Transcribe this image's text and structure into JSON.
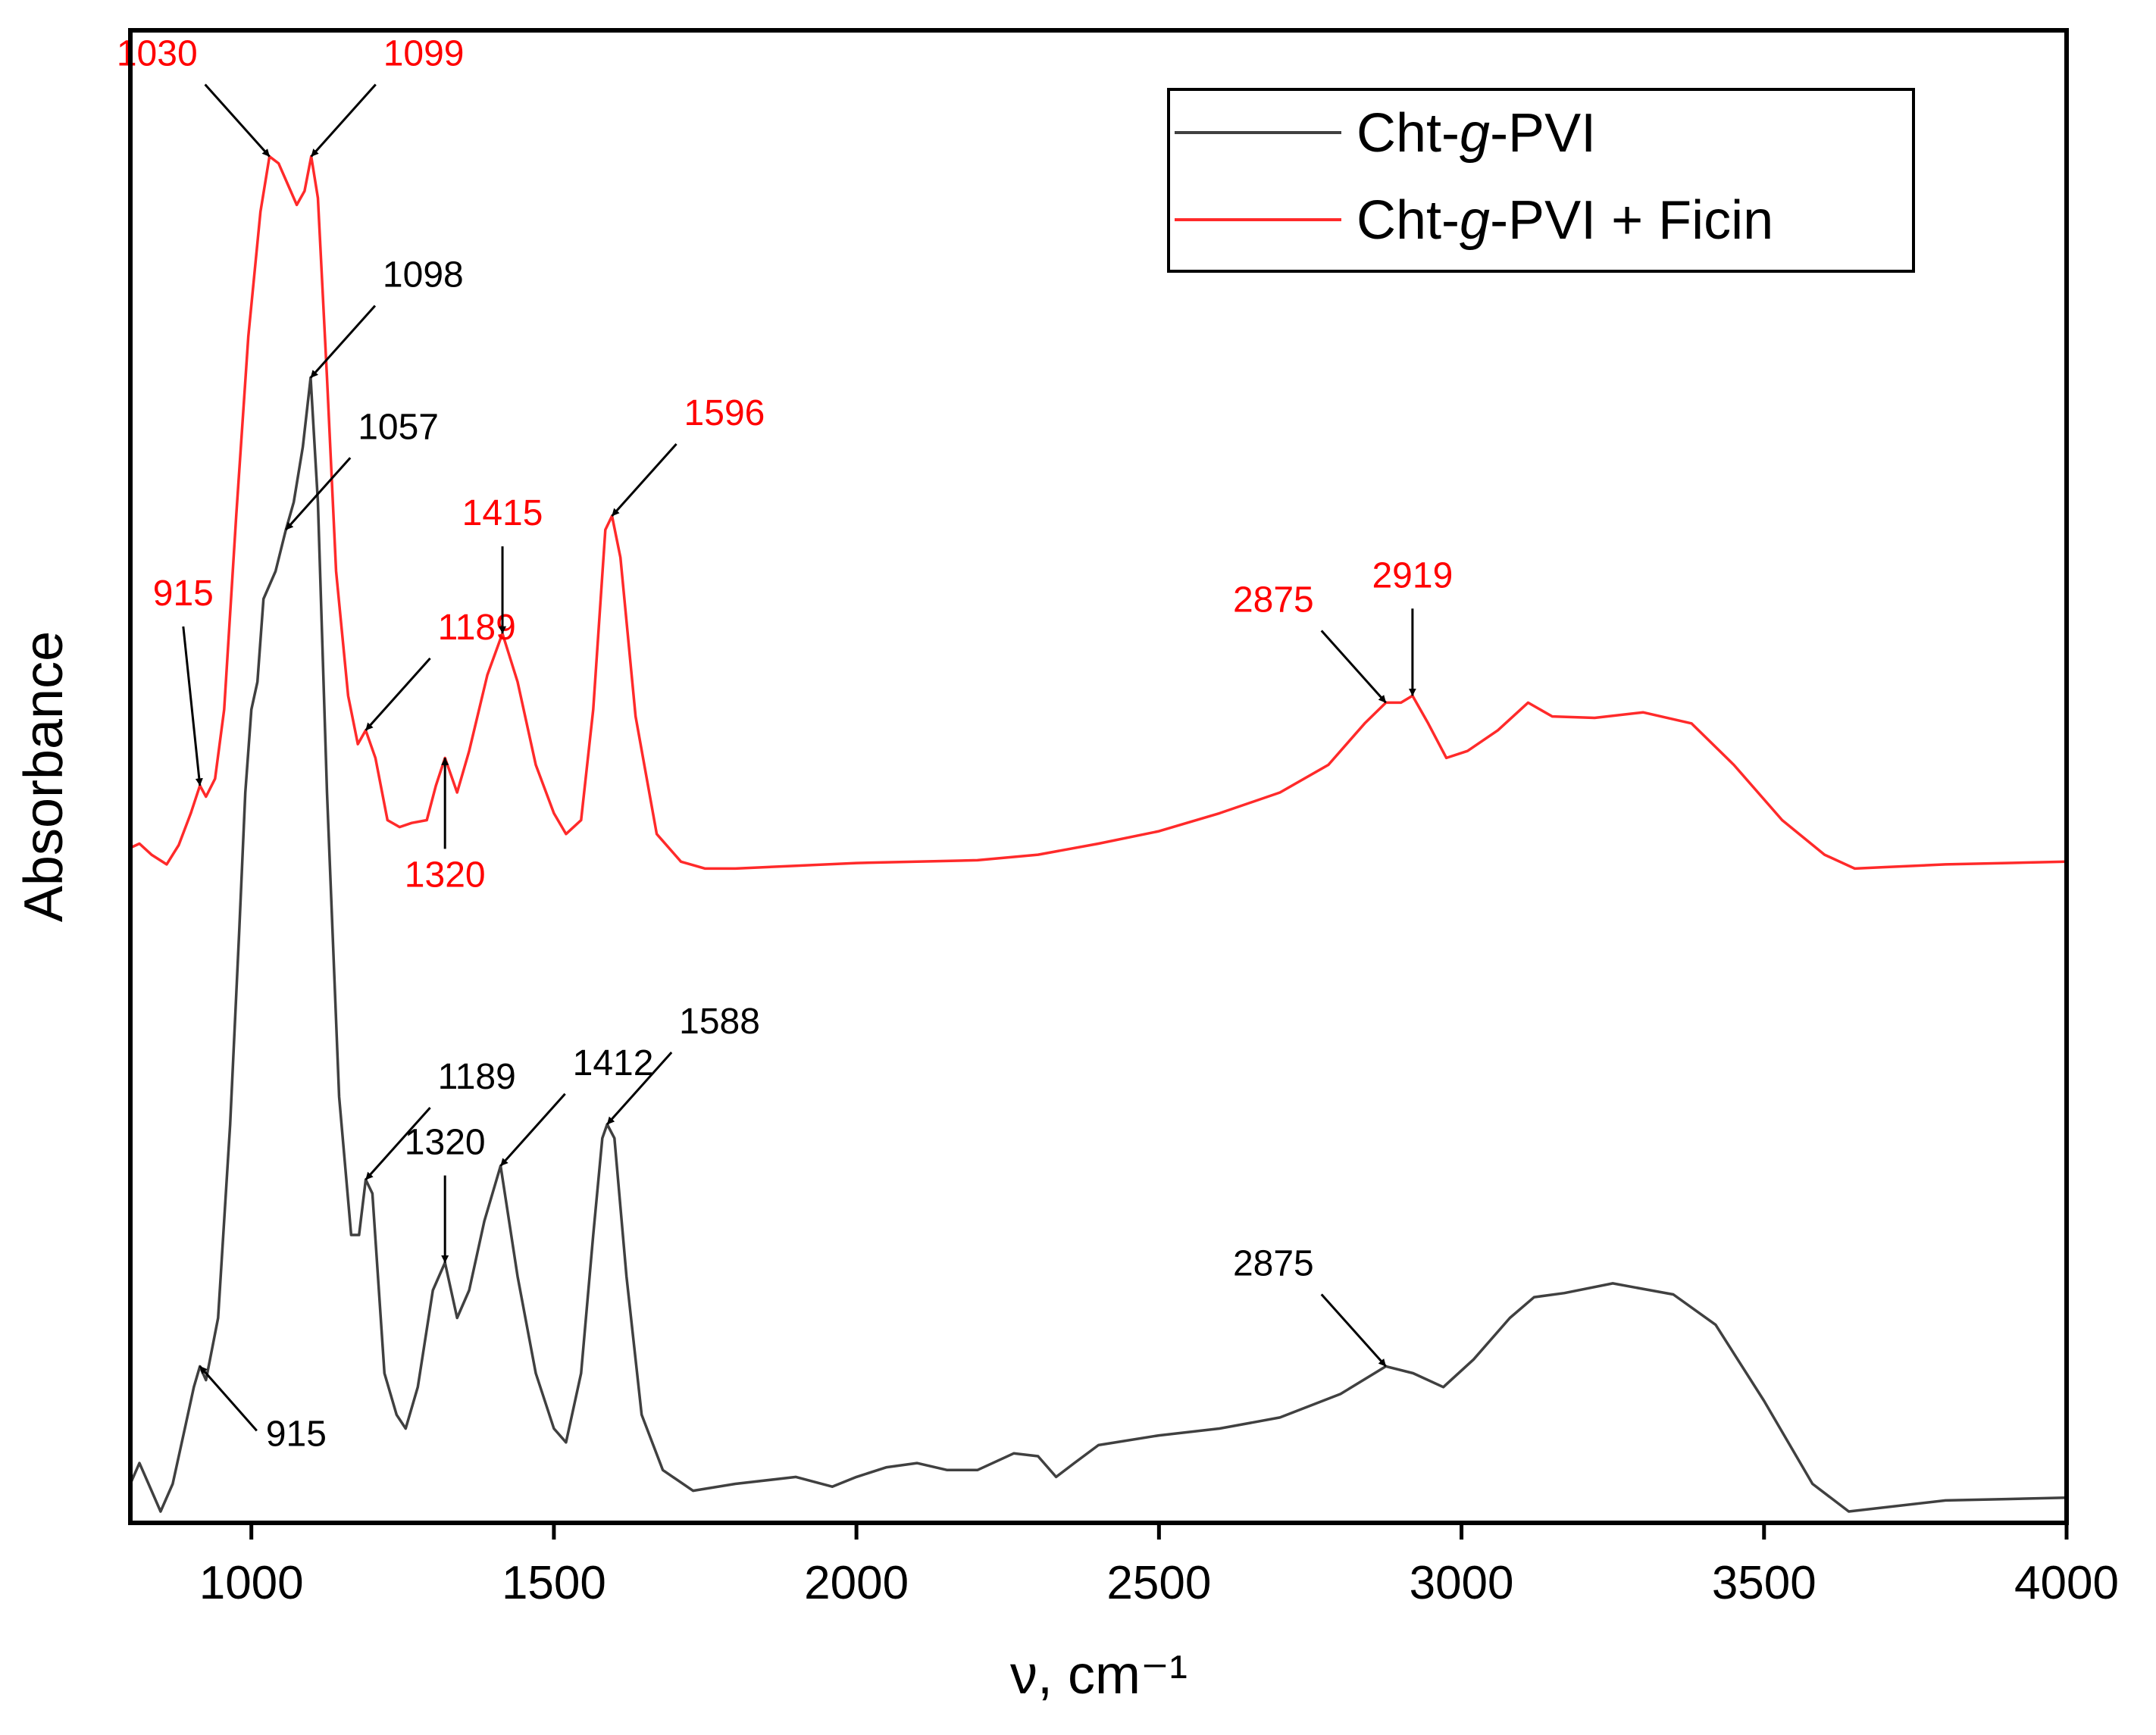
{
  "chart_data": {
    "type": "line",
    "title": "",
    "xlabel": "ν, cm⁻¹",
    "ylabel": "Absorbance",
    "xlim": [
      800,
      4000
    ],
    "ylim": [
      0,
      1
    ],
    "xticks": [
      1000,
      1500,
      2000,
      2500,
      3000,
      3500,
      4000
    ],
    "yticks_shown": false,
    "grid": false,
    "legend_position": "top-right",
    "series": [
      {
        "name": "Cht-g-PVI",
        "legend_parts": [
          "Cht-",
          "g",
          "-PVI"
        ],
        "color": "#404040",
        "points": [
          [
            800,
            0.02
          ],
          [
            815,
            0.035
          ],
          [
            830,
            0.02
          ],
          [
            850,
            0.0
          ],
          [
            870,
            0.02
          ],
          [
            890,
            0.06
          ],
          [
            905,
            0.09
          ],
          [
            915,
            0.105
          ],
          [
            925,
            0.095
          ],
          [
            945,
            0.14
          ],
          [
            965,
            0.28
          ],
          [
            980,
            0.42
          ],
          [
            990,
            0.52
          ],
          [
            1000,
            0.58
          ],
          [
            1010,
            0.6
          ],
          [
            1020,
            0.66
          ],
          [
            1040,
            0.68
          ],
          [
            1057,
            0.71
          ],
          [
            1070,
            0.73
          ],
          [
            1085,
            0.77
          ],
          [
            1098,
            0.82
          ],
          [
            1110,
            0.73
          ],
          [
            1125,
            0.52
          ],
          [
            1145,
            0.3
          ],
          [
            1165,
            0.2
          ],
          [
            1178,
            0.2
          ],
          [
            1189,
            0.24
          ],
          [
            1200,
            0.23
          ],
          [
            1220,
            0.1
          ],
          [
            1240,
            0.07
          ],
          [
            1255,
            0.06
          ],
          [
            1275,
            0.09
          ],
          [
            1300,
            0.16
          ],
          [
            1320,
            0.18
          ],
          [
            1340,
            0.14
          ],
          [
            1360,
            0.16
          ],
          [
            1385,
            0.21
          ],
          [
            1412,
            0.25
          ],
          [
            1440,
            0.17
          ],
          [
            1470,
            0.1
          ],
          [
            1500,
            0.06
          ],
          [
            1520,
            0.05
          ],
          [
            1545,
            0.1
          ],
          [
            1565,
            0.2
          ],
          [
            1580,
            0.27
          ],
          [
            1588,
            0.28
          ],
          [
            1600,
            0.27
          ],
          [
            1620,
            0.17
          ],
          [
            1645,
            0.07
          ],
          [
            1680,
            0.03
          ],
          [
            1730,
            0.015
          ],
          [
            1800,
            0.02
          ],
          [
            1900,
            0.025
          ],
          [
            1960,
            0.018
          ],
          [
            2000,
            0.025
          ],
          [
            2050,
            0.032
          ],
          [
            2100,
            0.035
          ],
          [
            2150,
            0.03
          ],
          [
            2200,
            0.03
          ],
          [
            2260,
            0.042
          ],
          [
            2300,
            0.04
          ],
          [
            2330,
            0.025
          ],
          [
            2360,
            0.035
          ],
          [
            2400,
            0.048
          ],
          [
            2500,
            0.055
          ],
          [
            2600,
            0.06
          ],
          [
            2700,
            0.068
          ],
          [
            2800,
            0.085
          ],
          [
            2875,
            0.105
          ],
          [
            2920,
            0.1
          ],
          [
            2970,
            0.09
          ],
          [
            3020,
            0.11
          ],
          [
            3080,
            0.14
          ],
          [
            3120,
            0.155
          ],
          [
            3170,
            0.158
          ],
          [
            3250,
            0.165
          ],
          [
            3350,
            0.157
          ],
          [
            3420,
            0.135
          ],
          [
            3500,
            0.08
          ],
          [
            3580,
            0.02
          ],
          [
            3640,
            0.0
          ],
          [
            3700,
            0.003
          ],
          [
            3800,
            0.008
          ],
          [
            3900,
            0.009
          ],
          [
            4000,
            0.01
          ]
        ]
      },
      {
        "name": "Cht-g-PVI + Ficin",
        "legend_parts": [
          "Cht-",
          "g",
          "-PVI + Ficin"
        ],
        "color": "#ff2a2a",
        "points": [
          [
            800,
            0.48
          ],
          [
            815,
            0.483
          ],
          [
            835,
            0.475
          ],
          [
            860,
            0.468
          ],
          [
            880,
            0.482
          ],
          [
            900,
            0.505
          ],
          [
            915,
            0.525
          ],
          [
            925,
            0.517
          ],
          [
            940,
            0.53
          ],
          [
            955,
            0.58
          ],
          [
            975,
            0.72
          ],
          [
            995,
            0.85
          ],
          [
            1015,
            0.94
          ],
          [
            1030,
            0.98
          ],
          [
            1045,
            0.975
          ],
          [
            1060,
            0.96
          ],
          [
            1075,
            0.945
          ],
          [
            1088,
            0.955
          ],
          [
            1099,
            0.98
          ],
          [
            1110,
            0.95
          ],
          [
            1125,
            0.82
          ],
          [
            1140,
            0.68
          ],
          [
            1160,
            0.59
          ],
          [
            1176,
            0.555
          ],
          [
            1189,
            0.565
          ],
          [
            1205,
            0.545
          ],
          [
            1225,
            0.5
          ],
          [
            1245,
            0.495
          ],
          [
            1265,
            0.498
          ],
          [
            1290,
            0.5
          ],
          [
            1305,
            0.525
          ],
          [
            1320,
            0.545
          ],
          [
            1340,
            0.52
          ],
          [
            1360,
            0.55
          ],
          [
            1390,
            0.605
          ],
          [
            1415,
            0.635
          ],
          [
            1440,
            0.6
          ],
          [
            1470,
            0.54
          ],
          [
            1500,
            0.505
          ],
          [
            1520,
            0.49
          ],
          [
            1545,
            0.5
          ],
          [
            1565,
            0.58
          ],
          [
            1585,
            0.71
          ],
          [
            1596,
            0.72
          ],
          [
            1610,
            0.69
          ],
          [
            1635,
            0.575
          ],
          [
            1670,
            0.49
          ],
          [
            1710,
            0.47
          ],
          [
            1750,
            0.465
          ],
          [
            1800,
            0.465
          ],
          [
            1900,
            0.467
          ],
          [
            2000,
            0.469
          ],
          [
            2100,
            0.47
          ],
          [
            2200,
            0.471
          ],
          [
            2300,
            0.475
          ],
          [
            2400,
            0.483
          ],
          [
            2500,
            0.492
          ],
          [
            2600,
            0.505
          ],
          [
            2700,
            0.52
          ],
          [
            2780,
            0.54
          ],
          [
            2840,
            0.57
          ],
          [
            2875,
            0.585
          ],
          [
            2900,
            0.585
          ],
          [
            2919,
            0.59
          ],
          [
            2945,
            0.57
          ],
          [
            2975,
            0.545
          ],
          [
            3010,
            0.55
          ],
          [
            3060,
            0.565
          ],
          [
            3110,
            0.585
          ],
          [
            3150,
            0.575
          ],
          [
            3220,
            0.574
          ],
          [
            3300,
            0.578
          ],
          [
            3380,
            0.57
          ],
          [
            3450,
            0.54
          ],
          [
            3530,
            0.5
          ],
          [
            3600,
            0.475
          ],
          [
            3650,
            0.465
          ],
          [
            3700,
            0.466
          ],
          [
            3800,
            0.468
          ],
          [
            3900,
            0.469
          ],
          [
            4000,
            0.47
          ]
        ]
      }
    ],
    "annotations": [
      {
        "text": "1030",
        "series": 1,
        "target": [
          1030,
          0.98
        ],
        "anchor": "upper-left"
      },
      {
        "text": "1099",
        "series": 1,
        "target": [
          1099,
          0.98
        ],
        "anchor": "upper-right"
      },
      {
        "text": "915",
        "series": 1,
        "target": [
          915,
          0.525
        ],
        "anchor": "above-left"
      },
      {
        "text": "1189",
        "series": 1,
        "target": [
          1189,
          0.565
        ],
        "anchor": "upper-right"
      },
      {
        "text": "1320",
        "series": 1,
        "target": [
          1320,
          0.545
        ],
        "anchor": "below"
      },
      {
        "text": "1415",
        "series": 1,
        "target": [
          1415,
          0.635
        ],
        "anchor": "above"
      },
      {
        "text": "1596",
        "series": 1,
        "target": [
          1596,
          0.72
        ],
        "anchor": "upper-right"
      },
      {
        "text": "2875",
        "series": 1,
        "target": [
          2875,
          0.585
        ],
        "anchor": "upper-left"
      },
      {
        "text": "2919",
        "series": 1,
        "target": [
          2919,
          0.59
        ],
        "anchor": "above"
      },
      {
        "text": "1098",
        "series": 0,
        "target": [
          1098,
          0.82
        ],
        "anchor": "upper-right"
      },
      {
        "text": "1057",
        "series": 0,
        "target": [
          1057,
          0.71
        ],
        "anchor": "upper-right"
      },
      {
        "text": "1189",
        "series": 0,
        "target": [
          1189,
          0.24
        ],
        "anchor": "upper-right"
      },
      {
        "text": "1320",
        "series": 0,
        "target": [
          1320,
          0.18
        ],
        "anchor": "above"
      },
      {
        "text": "1412",
        "series": 0,
        "target": [
          1412,
          0.25
        ],
        "anchor": "upper-right"
      },
      {
        "text": "1588",
        "series": 0,
        "target": [
          1588,
          0.28
        ],
        "anchor": "upper-right"
      },
      {
        "text": "915",
        "series": 0,
        "target": [
          915,
          0.105
        ],
        "anchor": "below-right"
      },
      {
        "text": "2875",
        "series": 0,
        "target": [
          2875,
          0.105
        ],
        "anchor": "upper-left"
      }
    ]
  }
}
